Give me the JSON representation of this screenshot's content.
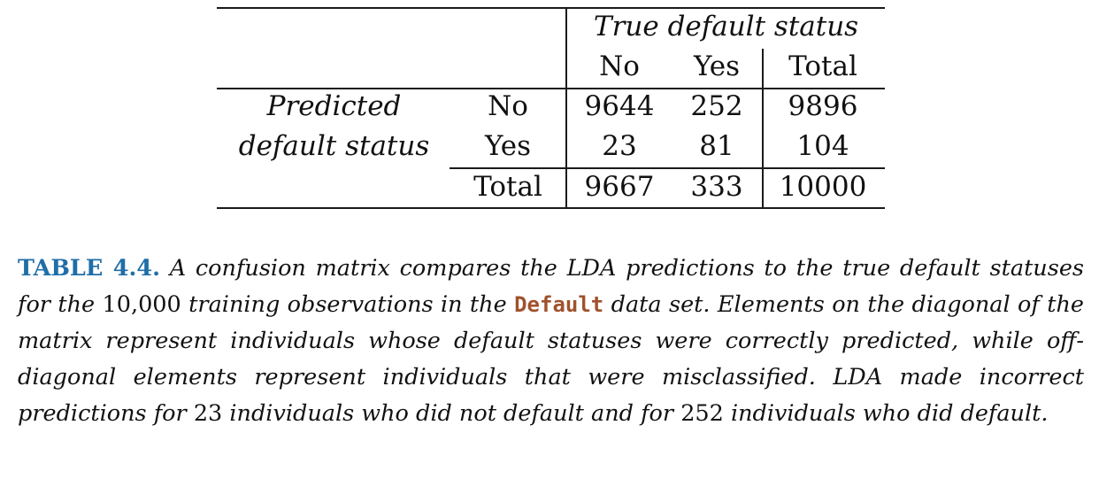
{
  "table": {
    "header_group": "True default status",
    "col_headers": [
      "No",
      "Yes",
      "Total"
    ],
    "row_group": [
      "Predicted",
      "default status"
    ],
    "rows": [
      {
        "label": "No",
        "cells": [
          "9644",
          "252",
          "9896"
        ]
      },
      {
        "label": "Yes",
        "cells": [
          "23",
          "81",
          "104"
        ]
      },
      {
        "label": "Total",
        "cells": [
          "9667",
          "333",
          "10000"
        ]
      }
    ]
  },
  "caption": {
    "label": "TABLE 4.4.",
    "p1": "A confusion matrix compares the LDA predictions to the true default statuses for the",
    "n1": "10,000",
    "p2": "training observations in the",
    "dataset": "Default",
    "p3": "data set. Elements on the diagonal of the matrix represent individuals whose default statuses were correctly predicted, while off-diagonal elements represent individuals that were misclassified. LDA made incorrect predictions for",
    "n2": "23",
    "p4": "individuals who did not default and for",
    "n3": "252",
    "p5": "individuals who did default."
  }
}
